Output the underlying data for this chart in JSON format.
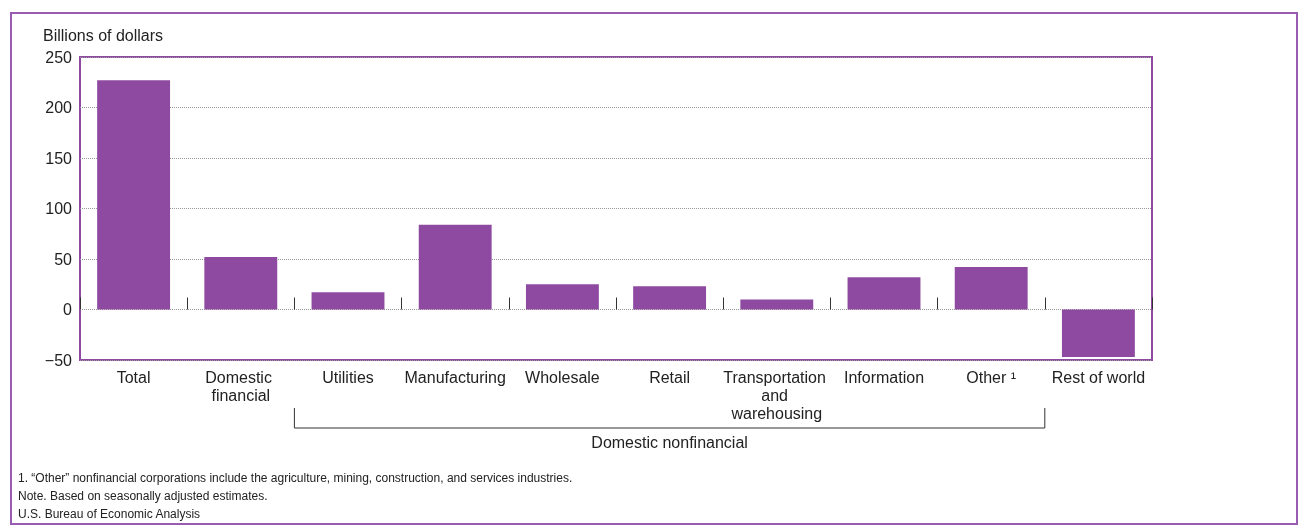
{
  "chart_data": {
    "type": "bar",
    "ylabel": "Billions of dollars",
    "categories": [
      "Total",
      "Domestic financial",
      "Utilities",
      "Manufacturing",
      "Wholesale",
      "Retail",
      "Transportation and warehousing",
      "Information",
      "Other ¹",
      "Rest of world"
    ],
    "values": [
      227,
      52,
      17,
      84,
      25,
      23,
      10,
      32,
      42,
      -47
    ],
    "color": "#8e4aa0",
    "ylim": [
      -50,
      250
    ],
    "yticks": [
      -50,
      0,
      50,
      100,
      150,
      200,
      250
    ],
    "grid": "y",
    "annotations": [
      "Domestic nonfinancial",
      "1. “Other” nonfinancial corporations include the agriculture, mining, construction, and services industries.",
      "Note. Based on seasonally adjusted estimates.",
      "U.S. Bureau of Economic Analysis"
    ]
  }
}
